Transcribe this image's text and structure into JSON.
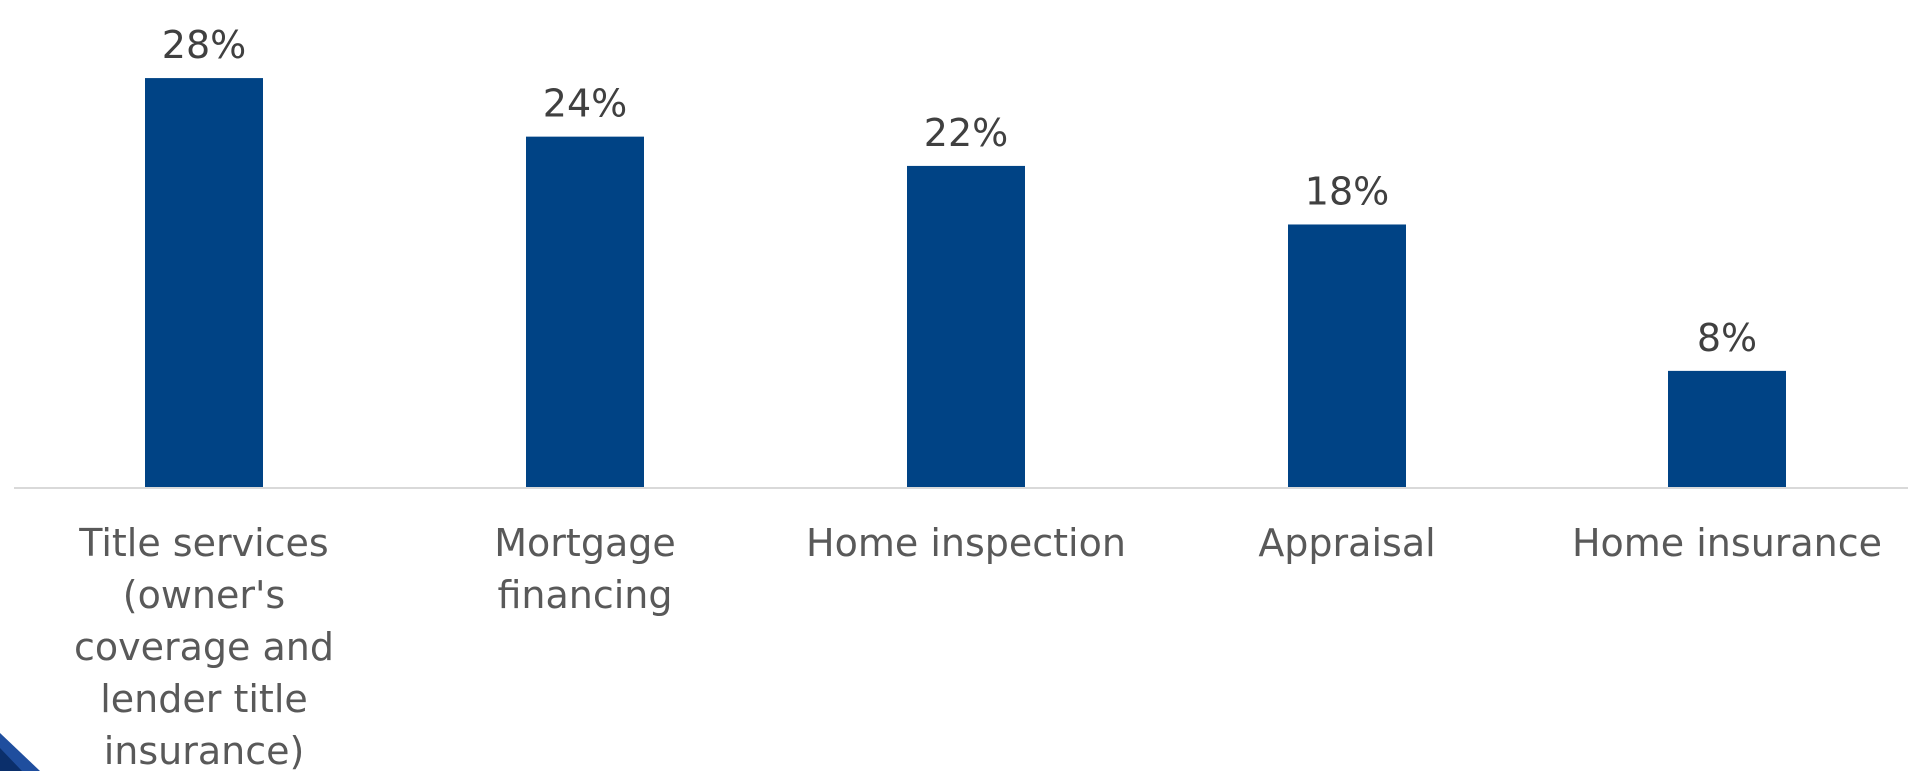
{
  "chart_data": {
    "type": "bar",
    "categories": [
      "Title services (owner's coverage and lender title insurance)",
      "Mortgage financing",
      "Home inspection",
      "Appraisal",
      "Home insurance"
    ],
    "category_lines": [
      [
        "Title services",
        "(owner's",
        "coverage and",
        "lender title",
        "insurance)"
      ],
      [
        "Mortgage",
        "financing"
      ],
      [
        "Home inspection"
      ],
      [
        "Appraisal"
      ],
      [
        "Home insurance"
      ]
    ],
    "values": [
      28,
      24,
      22,
      18,
      8
    ],
    "data_labels": [
      "28%",
      "24%",
      "22%",
      "18%",
      "8%"
    ],
    "unit": "%",
    "ylim": [
      0,
      30
    ],
    "title": "",
    "xlabel": "",
    "ylabel": "",
    "grid": false,
    "legend": "none",
    "bar_color": "#004385",
    "axis_color": "#d9d9d9",
    "corner_decoration_colors": [
      "#1f4e9e",
      "#0b2f6b"
    ]
  }
}
